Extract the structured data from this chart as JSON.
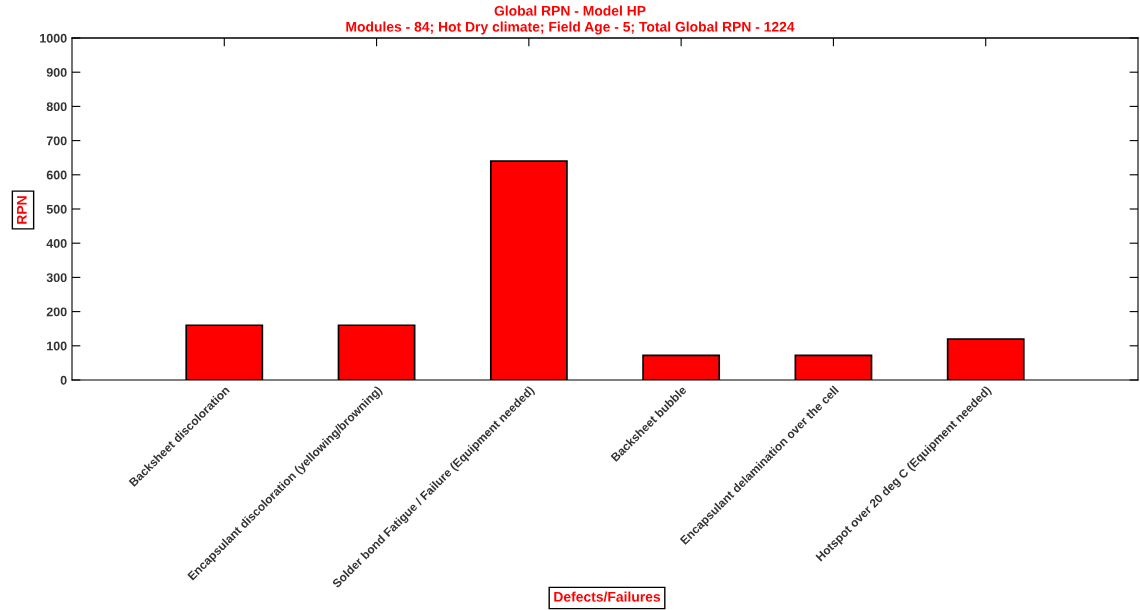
{
  "chart_data": {
    "type": "bar",
    "title": "Global RPN - Model HP",
    "subtitle": "Modules - 84; Hot Dry climate; Field Age - 5; Total Global RPN - 1224",
    "xlabel": "Defects/Failures",
    "ylabel": "RPN",
    "categories": [
      "Backsheet discoloration",
      "Encapsulant discoloration (yellowing/browning)",
      "Solder bond Fatigue / Failure (Equipment needed)",
      "Backsheet bubble",
      "Encapsulant delamination over the cell",
      "Hotspot over 20 deg C (Equipment needed)"
    ],
    "values": [
      160,
      160,
      640,
      72,
      72,
      120
    ],
    "color": "#ff0000",
    "ylim": [
      0,
      1000
    ],
    "yticks": [
      0,
      100,
      200,
      300,
      400,
      500,
      600,
      700,
      800,
      900,
      1000
    ],
    "grid": false,
    "legend": false
  }
}
